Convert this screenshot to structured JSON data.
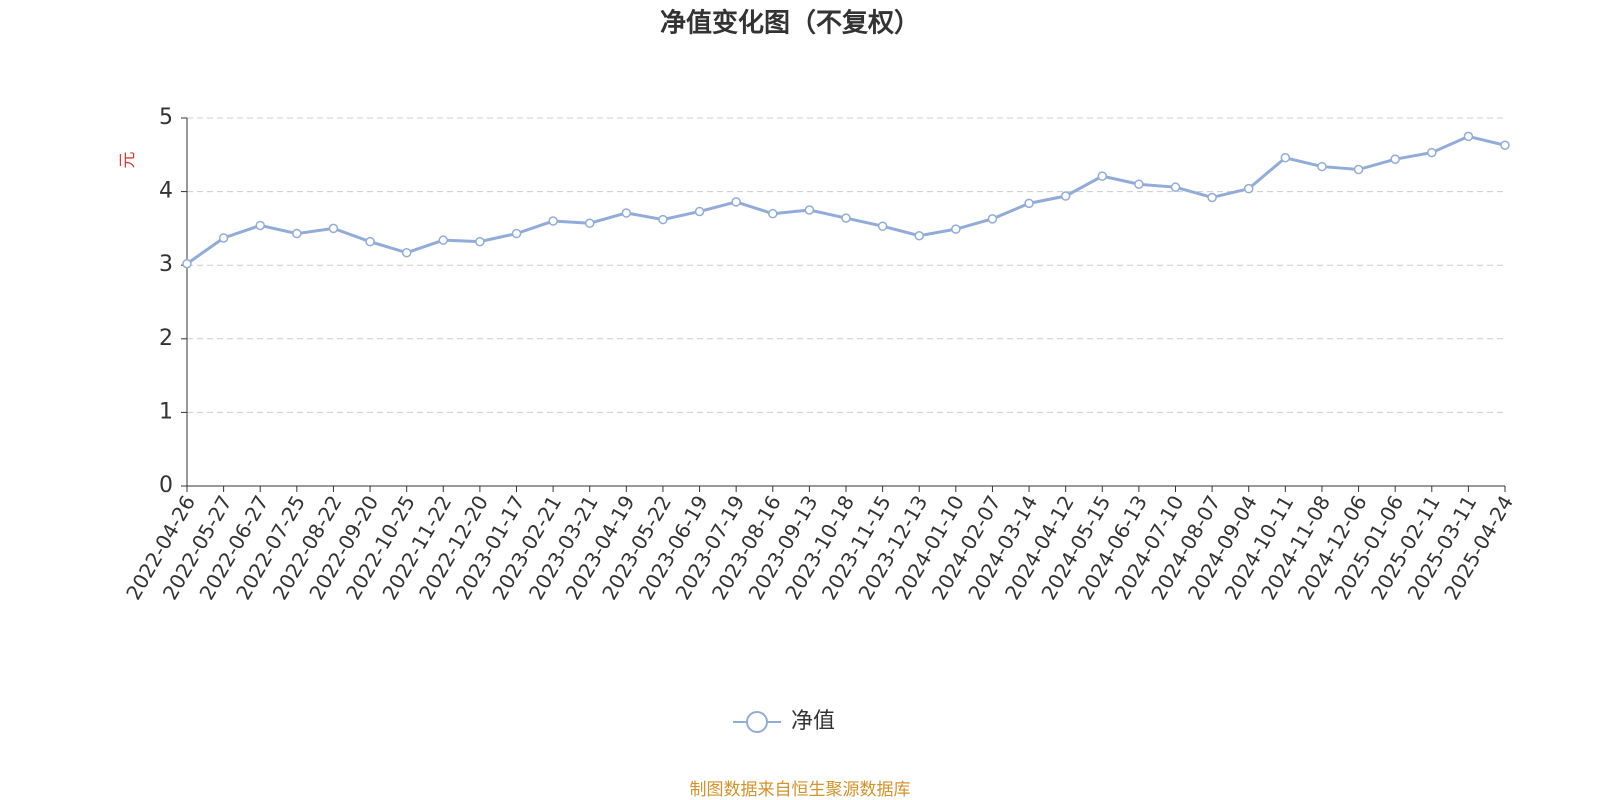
{
  "chart_data": {
    "type": "line",
    "title": "净值变化图（不复权）",
    "y_label": "元",
    "categories": [
      "2022-04-26",
      "2022-05-27",
      "2022-06-27",
      "2022-07-25",
      "2022-08-22",
      "2022-09-20",
      "2022-10-25",
      "2022-11-22",
      "2022-12-20",
      "2023-01-17",
      "2023-02-21",
      "2023-03-21",
      "2023-04-19",
      "2023-05-22",
      "2023-06-19",
      "2023-07-19",
      "2023-08-16",
      "2023-09-13",
      "2023-10-18",
      "2023-11-15",
      "2023-12-13",
      "2024-01-10",
      "2024-02-07",
      "2024-03-14",
      "2024-04-12",
      "2024-05-15",
      "2024-06-13",
      "2024-07-10",
      "2024-08-07",
      "2024-09-04",
      "2024-10-11",
      "2024-11-08",
      "2024-12-06",
      "2025-01-06",
      "2025-02-11",
      "2025-03-11",
      "2025-04-24"
    ],
    "series": [
      {
        "name": "净值",
        "color": "#91acd9",
        "values": [
          3.02,
          3.37,
          3.54,
          3.43,
          3.5,
          3.32,
          3.17,
          3.34,
          3.32,
          3.43,
          3.6,
          3.57,
          3.71,
          3.62,
          3.73,
          3.86,
          3.7,
          3.75,
          3.64,
          3.53,
          3.4,
          3.49,
          3.63,
          3.84,
          3.94,
          4.21,
          4.1,
          4.06,
          3.92,
          4.04,
          4.46,
          4.34,
          4.3,
          4.44,
          4.53,
          4.75,
          4.63
        ]
      }
    ],
    "ylim": [
      0,
      5
    ],
    "yticks": [
      0,
      1,
      2,
      3,
      4,
      5
    ],
    "grid": true,
    "legend": "bottom",
    "source": "制图数据来自恒生聚源数据库"
  }
}
